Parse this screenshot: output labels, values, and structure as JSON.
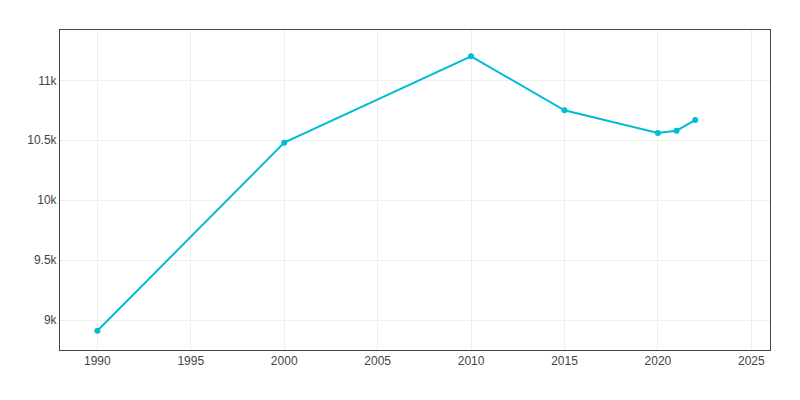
{
  "chart_data": {
    "type": "line",
    "x": [
      1990,
      2000,
      2010,
      2015,
      2020,
      2021,
      2022
    ],
    "values": [
      8910,
      10480,
      11200,
      10750,
      10560,
      10580,
      10670
    ],
    "color": "#00BCD4",
    "marker": "circle",
    "xlim": [
      1988,
      2026
    ],
    "ylim": [
      8750,
      11420
    ],
    "xticks": [
      1990,
      1995,
      2000,
      2005,
      2010,
      2015,
      2020,
      2025
    ],
    "yticks": [
      {
        "value": 9000,
        "label": "9k"
      },
      {
        "value": 9500,
        "label": "9.5k"
      },
      {
        "value": 10000,
        "label": "10k"
      },
      {
        "value": 10500,
        "label": "10.5k"
      },
      {
        "value": 11000,
        "label": "11k"
      }
    ],
    "grid": true
  }
}
